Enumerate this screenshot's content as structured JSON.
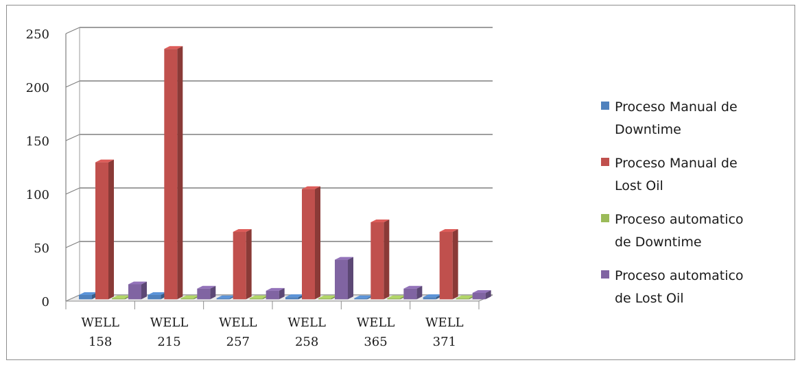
{
  "chart_data": {
    "type": "bar",
    "categories": [
      "WELL\n158",
      "WELL\n215",
      "WELL\n257",
      "WELL\n258",
      "WELL\n365",
      "WELL\n371"
    ],
    "series": [
      {
        "name": "Proceso Manual de\nDowntime",
        "color": "#4f81bd",
        "values": [
          4,
          4,
          1,
          2,
          1,
          2
        ]
      },
      {
        "name": "Proceso Manual de\nLost Oil",
        "color": "#c0504d",
        "values": [
          128,
          234,
          63,
          103,
          72,
          63
        ]
      },
      {
        "name": "Proceso automatico\nde Downtime",
        "color": "#9bbb59",
        "values": [
          1,
          1,
          1,
          1,
          1,
          1
        ]
      },
      {
        "name": "Proceso automatico\nde Lost Oil",
        "color": "#8064a2",
        "values": [
          14,
          10,
          8,
          37,
          10,
          6
        ]
      }
    ],
    "y_ticks": [
      "0",
      "50",
      "100",
      "150",
      "200",
      "250"
    ],
    "ylim": [
      0,
      250
    ],
    "grid": true,
    "legend_position": "right"
  }
}
